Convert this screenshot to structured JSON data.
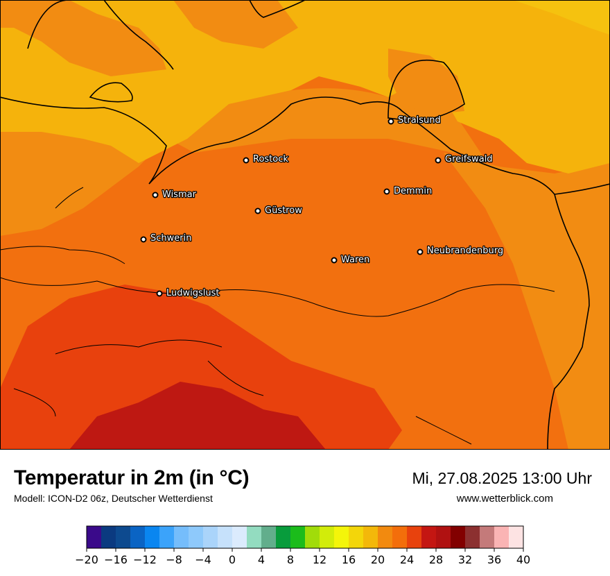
{
  "map": {
    "cities": [
      {
        "name": "Stralsund"
      },
      {
        "name": "Rostock"
      },
      {
        "name": "Greifswald"
      },
      {
        "name": "Wismar"
      },
      {
        "name": "Demmin"
      },
      {
        "name": "Güstrow"
      },
      {
        "name": "Schwerin"
      },
      {
        "name": "Neubrandenburg"
      },
      {
        "name": "Waren"
      },
      {
        "name": "Ludwigslust"
      }
    ],
    "colors": {
      "t16_18": "#f5c20f",
      "t18_20": "#f5b30c",
      "t20_22": "#f28c12",
      "t22_24": "#f2700f",
      "t24_26": "#e8410d",
      "t26_28": "#be1812",
      "coast": "#000000"
    }
  },
  "footer": {
    "title": "Temperatur in 2m (in °C)",
    "model": "Modell: ICON-D2 06z, Deutscher Wetterdienst",
    "datetime": "Mi, 27.08.2025 13:00 Uhr",
    "website": "www.wetterblick.com"
  },
  "legend": {
    "unit": "°C",
    "min": -20,
    "max": 40,
    "step": 2,
    "tick_labels": [
      "−20",
      "−16",
      "−12",
      "−8",
      "−4",
      "0",
      "4",
      "8",
      "12",
      "16",
      "20",
      "24",
      "28",
      "32",
      "36",
      "40"
    ],
    "colors": [
      "#3a0a8a",
      "#0b3a80",
      "#0d4a8f",
      "#0a64c4",
      "#0a86f0",
      "#3ba3fa",
      "#75bdfb",
      "#8ec9fb",
      "#aad4fa",
      "#c6e1fb",
      "#dbebfd",
      "#93dcc0",
      "#62ae8c",
      "#089c3c",
      "#1bbc1b",
      "#a1dc0a",
      "#d2ec0a",
      "#f4f50a",
      "#f3d60a",
      "#f3b80a",
      "#f28a0f",
      "#f36e0b",
      "#e8420d",
      "#c41612",
      "#b01111",
      "#820000",
      "#8c3030",
      "#c47a7a",
      "#fab4b4",
      "#fde3e3"
    ]
  }
}
